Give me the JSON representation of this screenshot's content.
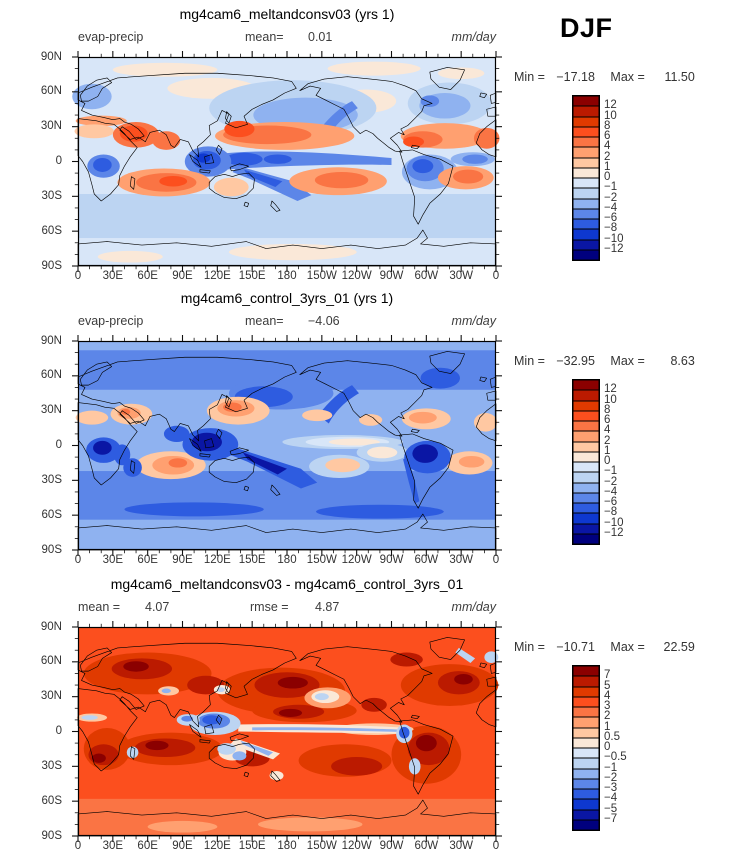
{
  "season_label": "DJF",
  "axes": {
    "lat_labels": [
      "90N",
      "60N",
      "30N",
      "0",
      "30S",
      "60S",
      "90S"
    ],
    "lon_labels": [
      "0",
      "30E",
      "60E",
      "90E",
      "120E",
      "150E",
      "180",
      "150W",
      "120W",
      "90W",
      "60W",
      "30W",
      "0"
    ]
  },
  "colors": {
    "palette_top_to_bottom": [
      "#8b0000",
      "#bb1a00",
      "#e03a00",
      "#fc4f1e",
      "#fa7444",
      "#ffa070",
      "#ffc8a2",
      "#fae8d8",
      "#d8e6f8",
      "#bcd4f2",
      "#8fb2f0",
      "#5c86e8",
      "#2e5ce0",
      "#0e38d0",
      "#0a16a4",
      "#00007e"
    ]
  },
  "panels": [
    {
      "title": "mg4cam6_meltandconsv03 (yrs 1)",
      "var_label": "evap-precip",
      "stat1_label": "mean=",
      "stat1_value": "0.01",
      "stat2_label": "",
      "stat2_value": "",
      "units": "mm/day",
      "minmax": {
        "min_label": "Min =",
        "min_value": "−17.18",
        "max_label": "Max =",
        "max_value": "11.50"
      },
      "colorbar_ticks": [
        "12",
        "10",
        "8",
        "6",
        "4",
        "2",
        "1",
        "0",
        "−1",
        "−2",
        "−4",
        "−6",
        "−8",
        "−10",
        "−12"
      ]
    },
    {
      "title": "mg4cam6_control_3yrs_01 (yrs 1)",
      "var_label": "evap-precip",
      "stat1_label": "mean=",
      "stat1_value": "−4.06",
      "stat2_label": "",
      "stat2_value": "",
      "units": "mm/day",
      "minmax": {
        "min_label": "Min =",
        "min_value": "−32.95",
        "max_label": "Max =",
        "max_value": "8.63"
      },
      "colorbar_ticks": [
        "12",
        "10",
        "8",
        "6",
        "4",
        "2",
        "1",
        "0",
        "−1",
        "−2",
        "−4",
        "−6",
        "−8",
        "−10",
        "−12"
      ]
    },
    {
      "title": "mg4cam6_meltandconsv03 - mg4cam6_control_3yrs_01",
      "var_label": "",
      "stat1_label": "mean =",
      "stat1_value": "4.07",
      "stat2_label": "rmse =",
      "stat2_value": "4.87",
      "units": "mm/day",
      "minmax": {
        "min_label": "Min =",
        "min_value": "−10.71",
        "max_label": "Max =",
        "max_value": "22.59"
      },
      "colorbar_ticks": [
        "7",
        "5",
        "4",
        "3",
        "2",
        "1",
        "0.5",
        "0",
        "−0.5",
        "−1",
        "−2",
        "−3",
        "−4",
        "−5",
        "−7"
      ]
    }
  ],
  "chart_data": [
    {
      "type": "heatmap",
      "subtype": "filled-contour world map, equirectangular, lon 0–360E, lat 90S–90N",
      "title": "mg4cam6_meltandconsv03 (yrs 1)",
      "variable": "evap-precip",
      "season": "DJF",
      "units": "mm/day",
      "mean": 0.01,
      "min": -17.18,
      "max": 11.5,
      "contour_levels": [
        -12,
        -10,
        -8,
        -6,
        -4,
        -2,
        -1,
        0,
        1,
        2,
        4,
        6,
        8,
        10,
        12
      ],
      "xlabel_ticks": [
        "0",
        "30E",
        "60E",
        "90E",
        "120E",
        "150E",
        "180",
        "150W",
        "120W",
        "90W",
        "60W",
        "30W",
        "0"
      ],
      "ylabel_ticks": [
        "90N",
        "60N",
        "30N",
        "0",
        "30S",
        "60S",
        "90S"
      ],
      "legend_position": "right",
      "description": "Blue (negative, precip>evap) along ITCZ/SPCZ, maritime continent, Amazon, Congo and mid/high-latitude oceans; orange-red (positive) over subtropical oceans, Arabian Sea, Kuroshio and Caribbean."
    },
    {
      "type": "heatmap",
      "subtype": "filled-contour world map, equirectangular, lon 0–360E, lat 90S–90N",
      "title": "mg4cam6_control_3yrs_01 (yrs 1)",
      "variable": "evap-precip",
      "season": "DJF",
      "units": "mm/day",
      "mean": -4.06,
      "min": -32.95,
      "max": 8.63,
      "contour_levels": [
        -12,
        -10,
        -8,
        -6,
        -4,
        -2,
        -1,
        0,
        1,
        2,
        4,
        6,
        8,
        10,
        12
      ],
      "xlabel_ticks": [
        "0",
        "30E",
        "60E",
        "90E",
        "120E",
        "150E",
        "180",
        "150W",
        "120W",
        "90W",
        "60W",
        "30W",
        "0"
      ],
      "ylabel_ticks": [
        "90N",
        "60N",
        "30N",
        "0",
        "30S",
        "60S",
        "90S"
      ],
      "legend_position": "right",
      "description": "Predominantly blue (negative) globally with deep blue over tropical land and SPCZ; salmon positive patches over subtropical oceans, Sahara/Arabia; pale band along equatorial central Pacific."
    },
    {
      "type": "heatmap",
      "subtype": "difference map (model minus control), equirectangular, lon 0–360E, lat 90S–90N",
      "title": "mg4cam6_meltandconsv03 - mg4cam6_control_3yrs_01",
      "season": "DJF",
      "units": "mm/day",
      "mean": 4.07,
      "rmse": 4.87,
      "min": -10.71,
      "max": 22.59,
      "contour_levels": [
        -7,
        -5,
        -4,
        -3,
        -2,
        -1,
        -0.5,
        0,
        0.5,
        1,
        2,
        3,
        4,
        5,
        7
      ],
      "xlabel_ticks": [
        "0",
        "30E",
        "60E",
        "90E",
        "120E",
        "150E",
        "180",
        "150W",
        "120W",
        "90W",
        "60W",
        "30W",
        "0"
      ],
      "ylabel_ticks": [
        "90N",
        "60N",
        "30N",
        "0",
        "30S",
        "60S",
        "90S"
      ],
      "legend_position": "right",
      "description": "Nearly everywhere orange/dark-red (positive difference); narrow white-blue band along the equatorial Pacific, blue blobs over west Pacific/SE Asia, NE Pacific, Peru coast and SPCZ."
    }
  ]
}
